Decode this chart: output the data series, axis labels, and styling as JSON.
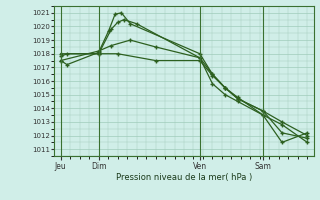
{
  "title": "",
  "xlabel": "Pression niveau de la mer( hPa )",
  "ylim": [
    1010.5,
    1021.5
  ],
  "yticks": [
    1011,
    1012,
    1013,
    1014,
    1015,
    1016,
    1017,
    1018,
    1019,
    1020,
    1021
  ],
  "background_color": "#d0eee8",
  "plot_bg_color": "#d0eee8",
  "grid_color": "#a0ccbb",
  "line_color": "#2d6020",
  "vline_color": "#3a7030",
  "day_labels": [
    "Jeu",
    "Dim",
    "Ven",
    "Sam"
  ],
  "day_positions": [
    0,
    3,
    11,
    16
  ],
  "vline_positions": [
    0,
    3,
    11,
    16
  ],
  "xlim": [
    -0.5,
    20
  ],
  "lines": [
    {
      "x": [
        0.0,
        0.5,
        3.0,
        4.0,
        4.5,
        5.0,
        6.0,
        11.0,
        12.0,
        13.0,
        14.0,
        16.0,
        17.5,
        19.5
      ],
      "y": [
        1017.8,
        1018.0,
        1018.0,
        1019.8,
        1020.3,
        1020.5,
        1020.2,
        1017.7,
        1016.5,
        1015.5,
        1014.7,
        1013.8,
        1012.2,
        1011.8
      ]
    },
    {
      "x": [
        0.0,
        0.5,
        3.0,
        3.8,
        4.3,
        4.8,
        5.5,
        11.0,
        12.0,
        13.0,
        14.0,
        16.0,
        17.5,
        19.5
      ],
      "y": [
        1017.5,
        1017.2,
        1018.1,
        1019.7,
        1020.9,
        1021.0,
        1020.2,
        1018.0,
        1016.5,
        1015.5,
        1014.8,
        1013.5,
        1011.5,
        1012.2
      ]
    },
    {
      "x": [
        0.0,
        3.0,
        4.0,
        5.5,
        7.5,
        11.0,
        12.0,
        13.0,
        14.0,
        16.0,
        17.5,
        19.5
      ],
      "y": [
        1017.5,
        1018.2,
        1018.6,
        1019.0,
        1018.5,
        1017.7,
        1015.8,
        1015.0,
        1014.5,
        1013.5,
        1012.8,
        1011.5
      ]
    },
    {
      "x": [
        0.0,
        3.0,
        4.5,
        7.5,
        11.0,
        12.0,
        13.0,
        14.0,
        16.0,
        17.5,
        19.5
      ],
      "y": [
        1018.0,
        1018.0,
        1018.0,
        1017.5,
        1017.5,
        1016.4,
        1015.5,
        1014.7,
        1013.8,
        1013.0,
        1012.0
      ]
    }
  ]
}
